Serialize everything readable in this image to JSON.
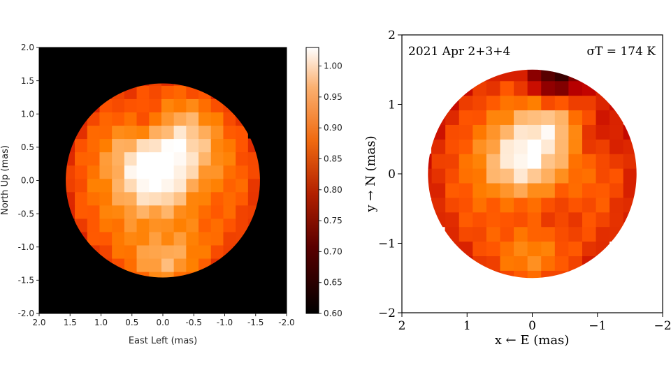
{
  "chart_data": [
    {
      "type": "heatmap",
      "title": "",
      "xlabel": "East Left (mas)",
      "ylabel": "North Up (mas)",
      "xlim": [
        2.0,
        -2.0
      ],
      "ylim": [
        -2.0,
        2.0
      ],
      "xticks": [
        2.0,
        1.5,
        1.0,
        0.5,
        0.0,
        -0.5,
        -1.0,
        -1.5,
        -2.0
      ],
      "xtick_labels": [
        "2.0",
        "1.5",
        "1.0",
        "0.5",
        "0.0",
        "-0.5",
        "-1.0",
        "-1.5",
        "-2.0"
      ],
      "yticks": [
        2.0,
        1.5,
        1.0,
        0.5,
        0.0,
        -0.5,
        -1.0,
        -1.5,
        -2.0
      ],
      "ytick_labels": [
        "2.0",
        "1.5",
        "1.0",
        "0.5",
        "0.0",
        "-0.5",
        "-1.0",
        "-1.5",
        "-2.0"
      ],
      "disk_radius": 1.57,
      "background_value": 0.6,
      "colorbar": {
        "range": [
          0.6,
          1.03
        ],
        "ticks": [
          1.0,
          0.95,
          0.9,
          0.85,
          0.8,
          0.75,
          0.7,
          0.65,
          0.6
        ],
        "tick_labels": [
          "1.00",
          "0.95",
          "0.90",
          "0.85",
          "0.80",
          "0.75",
          "0.70",
          "0.65",
          "0.60"
        ],
        "colormap": "gist_heat"
      },
      "features": [
        {
          "x": 0.1,
          "y": 0.0,
          "value": 1.02,
          "kind": "bright"
        },
        {
          "x": -0.3,
          "y": 0.6,
          "value": 1.0,
          "kind": "bright"
        },
        {
          "x": 0.35,
          "y": 0.4,
          "value": 0.98,
          "kind": "bright"
        },
        {
          "x": 0.0,
          "y": -1.25,
          "value": 1.0,
          "kind": "bright"
        },
        {
          "x": 0.25,
          "y": 0.85,
          "value": 0.86,
          "kind": "dark"
        },
        {
          "x": 0.05,
          "y": -0.75,
          "value": 0.89,
          "kind": "dark"
        },
        {
          "x": -0.7,
          "y": -0.4,
          "value": 0.9,
          "kind": "dark"
        }
      ]
    },
    {
      "type": "heatmap",
      "title": "",
      "annotation_left": "2021 Apr 2+3+4",
      "annotation_right": "σT = 174 K",
      "xlabel": "x ← E (mas)",
      "ylabel": "y → N (mas)",
      "xlim": [
        2,
        -2
      ],
      "ylim": [
        -2,
        2
      ],
      "xticks": [
        2,
        1,
        0,
        -1,
        -2
      ],
      "xtick_labels": [
        "2",
        "1",
        "0",
        "−1",
        "−2"
      ],
      "yticks": [
        2,
        1,
        0,
        -1,
        -2
      ],
      "ytick_labels": [
        "2",
        "1",
        "0",
        "−1",
        "−2"
      ],
      "disk_radius": 1.6,
      "colormap": "gist_heat",
      "features": [
        {
          "x": 0.2,
          "y": 0.2,
          "value": 1.02,
          "kind": "bright"
        },
        {
          "x": -0.35,
          "y": 0.75,
          "value": 1.0,
          "kind": "bright"
        },
        {
          "x": 0.05,
          "y": -1.3,
          "value": 0.96,
          "kind": "bright"
        },
        {
          "x": -0.35,
          "y": 1.4,
          "value": 0.7,
          "kind": "dark"
        },
        {
          "x": -0.9,
          "y": 0.6,
          "value": 0.84,
          "kind": "dark"
        },
        {
          "x": -0.4,
          "y": -0.6,
          "value": 0.86,
          "kind": "dark"
        },
        {
          "x": 0.3,
          "y": -0.6,
          "value": 0.87,
          "kind": "dark"
        }
      ]
    }
  ]
}
